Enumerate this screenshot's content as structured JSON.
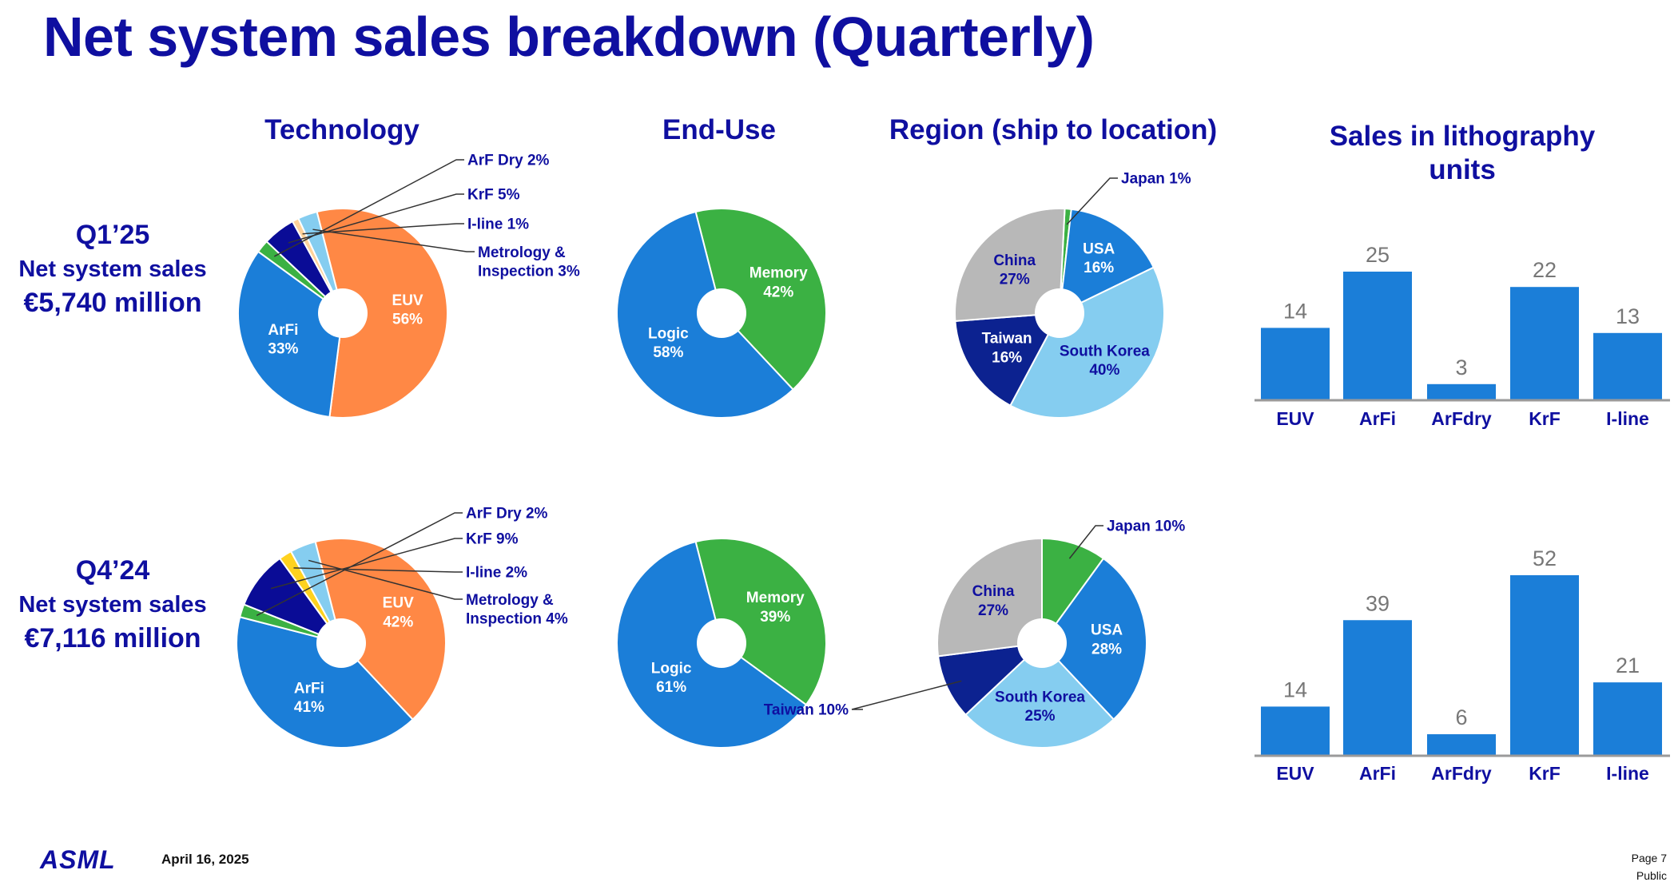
{
  "title": "Net system sales breakdown (Quarterly)",
  "headers": {
    "technology": "Technology",
    "end_use": "End-Use",
    "region": "Region (ship to location)",
    "units": "Sales in lithography units"
  },
  "rows": [
    {
      "quarter": "Q1’25",
      "label": "Net system sales",
      "amount": "€5,740 million"
    },
    {
      "quarter": "Q4’24",
      "label": "Net system sales",
      "amount": "€7,116 million"
    }
  ],
  "colors": {
    "title": "#0f0fa0",
    "euv": "#ff8845",
    "arfi": "#1b7ed8",
    "arf_dry": "#3bb143",
    "krf": "#0a0c96",
    "iline_q1": "#ffd29a",
    "iline_q4": "#ffd21f",
    "metrology": "#85cdf0",
    "memory": "#3bb143",
    "logic": "#1b7ed8",
    "japan": "#3bb143",
    "usa": "#1b7ed8",
    "south_korea": "#85cdf0",
    "taiwan": "#0c2290",
    "china": "#b8b8b8",
    "bar": "#1b7ed8"
  },
  "chart_data": [
    {
      "type": "pie",
      "id": "tech-q1",
      "row": 0,
      "column": "technology",
      "slices": [
        {
          "key": "euv",
          "name": "EUV",
          "value": 56,
          "label": "EUV\n56%",
          "placement": "inside"
        },
        {
          "key": "arfi",
          "name": "ArFi",
          "value": 33,
          "label": "ArFi\n33%",
          "placement": "inside"
        },
        {
          "key": "arf_dry",
          "name": "ArF Dry",
          "value": 2,
          "label": "ArF Dry 2%",
          "placement": "callout"
        },
        {
          "key": "krf",
          "name": "KrF",
          "value": 5,
          "label": "KrF 5%",
          "placement": "callout"
        },
        {
          "key": "iline_q1",
          "name": "I-line",
          "value": 1,
          "label": "I-line 1%",
          "placement": "callout"
        },
        {
          "key": "metrology",
          "name": "Metrology & Inspection",
          "value": 3,
          "label": "Metrology &\nInspection 3%",
          "placement": "callout"
        }
      ]
    },
    {
      "type": "pie",
      "id": "enduse-q1",
      "row": 0,
      "column": "end_use",
      "slices": [
        {
          "key": "memory",
          "name": "Memory",
          "value": 42,
          "label": "Memory\n42%",
          "placement": "inside"
        },
        {
          "key": "logic",
          "name": "Logic",
          "value": 58,
          "label": "Logic\n58%",
          "placement": "inside"
        }
      ]
    },
    {
      "type": "pie",
      "id": "region-q1",
      "row": 0,
      "column": "region",
      "slices": [
        {
          "key": "japan",
          "name": "Japan",
          "value": 1,
          "label": "Japan 1%",
          "placement": "callout"
        },
        {
          "key": "usa",
          "name": "USA",
          "value": 16,
          "label": "USA\n16%",
          "placement": "inside"
        },
        {
          "key": "south_korea",
          "name": "South Korea",
          "value": 40,
          "label": "South Korea\n40%",
          "placement": "inside"
        },
        {
          "key": "taiwan",
          "name": "Taiwan",
          "value": 16,
          "label": "Taiwan\n16%",
          "placement": "inside"
        },
        {
          "key": "china",
          "name": "China",
          "value": 27,
          "label": "China\n27%",
          "placement": "inside"
        }
      ]
    },
    {
      "type": "bar",
      "id": "units-q1",
      "row": 0,
      "column": "units",
      "categories": [
        "EUV",
        "ArFi",
        "ArFdry",
        "KrF",
        "I-line"
      ],
      "values": [
        14,
        25,
        3,
        22,
        13
      ]
    },
    {
      "type": "pie",
      "id": "tech-q4",
      "row": 1,
      "column": "technology",
      "slices": [
        {
          "key": "euv",
          "name": "EUV",
          "value": 42,
          "label": "EUV\n42%",
          "placement": "inside"
        },
        {
          "key": "arfi",
          "name": "ArFi",
          "value": 41,
          "label": "ArFi\n41%",
          "placement": "inside"
        },
        {
          "key": "arf_dry",
          "name": "ArF Dry",
          "value": 2,
          "label": "ArF Dry 2%",
          "placement": "callout"
        },
        {
          "key": "krf",
          "name": "KrF",
          "value": 9,
          "label": "KrF 9%",
          "placement": "callout"
        },
        {
          "key": "iline_q4",
          "name": "I-line",
          "value": 2,
          "label": "I-line 2%",
          "placement": "callout"
        },
        {
          "key": "metrology",
          "name": "Metrology & Inspection",
          "value": 4,
          "label": "Metrology &\nInspection 4%",
          "placement": "callout"
        }
      ]
    },
    {
      "type": "pie",
      "id": "enduse-q4",
      "row": 1,
      "column": "end_use",
      "slices": [
        {
          "key": "memory",
          "name": "Memory",
          "value": 39,
          "label": "Memory\n39%",
          "placement": "inside"
        },
        {
          "key": "logic",
          "name": "Logic",
          "value": 61,
          "label": "Logic\n61%",
          "placement": "inside"
        }
      ]
    },
    {
      "type": "pie",
      "id": "region-q4",
      "row": 1,
      "column": "region",
      "slices": [
        {
          "key": "japan",
          "name": "Japan",
          "value": 10,
          "label": "Japan 10%",
          "placement": "callout"
        },
        {
          "key": "usa",
          "name": "USA",
          "value": 28,
          "label": "USA\n28%",
          "placement": "inside"
        },
        {
          "key": "south_korea",
          "name": "South Korea",
          "value": 25,
          "label": "South Korea\n25%",
          "placement": "inside"
        },
        {
          "key": "taiwan",
          "name": "Taiwan",
          "value": 10,
          "label": "Taiwan 10%",
          "placement": "callout"
        },
        {
          "key": "china",
          "name": "China",
          "value": 27,
          "label": "China\n27%",
          "placement": "inside"
        }
      ]
    },
    {
      "type": "bar",
      "id": "units-q4",
      "row": 1,
      "column": "units",
      "categories": [
        "EUV",
        "ArFi",
        "ArFdry",
        "KrF",
        "I-line"
      ],
      "values": [
        14,
        39,
        6,
        52,
        21
      ]
    }
  ],
  "footer": {
    "logo": "ASML",
    "date": "April 16, 2025",
    "page": "Page 7",
    "classification": "Public"
  }
}
